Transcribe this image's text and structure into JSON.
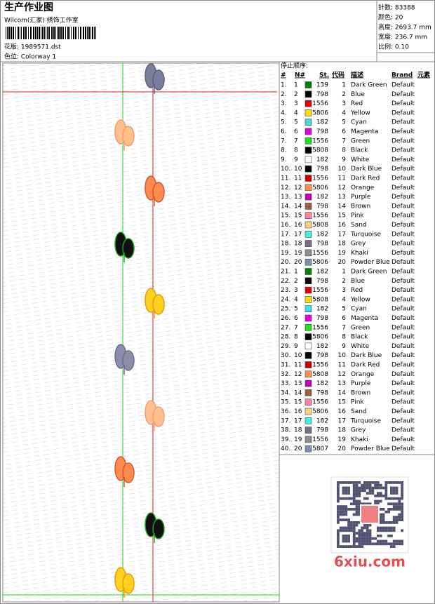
{
  "header": {
    "title": "生产作业图",
    "studio": "Wilcom(汇家) 绣饰工作室",
    "pattern": "花版: 1989571.dst",
    "colorway": "色位: Colorway 1"
  },
  "info": [
    "针数: 83388",
    "颜色: 20",
    "高度: 2693.7 mm",
    "宽度: 236.7 mm",
    "比例: 0.10"
  ],
  "table": {
    "title": "停止顺序:",
    "columns": [
      "#",
      "N#",
      "St.",
      "代码",
      "描述",
      "Brand",
      "元素"
    ],
    "rows": [
      [
        "1.",
        "1",
        "139",
        "1",
        "Dark Green",
        "Default"
      ],
      [
        "2.",
        "2",
        "798",
        "2",
        "Blue",
        "Default"
      ],
      [
        "3.",
        "3",
        "1556",
        "3",
        "Red",
        "Default"
      ],
      [
        "4.",
        "4",
        "5806",
        "4",
        "Yellow",
        "Default"
      ],
      [
        "5.",
        "5",
        "182",
        "5",
        "Cyan",
        "Default"
      ],
      [
        "6.",
        "6",
        "798",
        "6",
        "Magenta",
        "Default"
      ],
      [
        "7.",
        "7",
        "1556",
        "7",
        "Green",
        "Default"
      ],
      [
        "8.",
        "8",
        "5808",
        "8",
        "Black",
        "Default"
      ],
      [
        "9.",
        "9",
        "182",
        "9",
        "White",
        "Default"
      ],
      [
        "10.",
        "10",
        "798",
        "10",
        "Dark Blue",
        "Default"
      ],
      [
        "11.",
        "11",
        "1556",
        "11",
        "Dark Red",
        "Default"
      ],
      [
        "12.",
        "12",
        "5806",
        "12",
        "Orange",
        "Default"
      ],
      [
        "13.",
        "13",
        "182",
        "13",
        "Purple",
        "Default"
      ],
      [
        "14.",
        "14",
        "798",
        "14",
        "Brown",
        "Default"
      ],
      [
        "15.",
        "15",
        "1556",
        "15",
        "Pink",
        "Default"
      ],
      [
        "16.",
        "16",
        "5808",
        "16",
        "Sand",
        "Default"
      ],
      [
        "17.",
        "17",
        "182",
        "17",
        "Turquoise",
        "Default"
      ],
      [
        "18.",
        "18",
        "798",
        "18",
        "Grey",
        "Default"
      ],
      [
        "19.",
        "19",
        "1556",
        "19",
        "Khaki",
        "Default"
      ],
      [
        "20.",
        "20",
        "5806",
        "20",
        "Powder Blue",
        "Default"
      ],
      [
        "21.",
        "1",
        "182",
        "1",
        "Dark Green",
        "Default"
      ],
      [
        "22.",
        "2",
        "798",
        "2",
        "Blue",
        "Default"
      ],
      [
        "23.",
        "3",
        "1556",
        "3",
        "Red",
        "Default"
      ],
      [
        "24.",
        "4",
        "5808",
        "4",
        "Yellow",
        "Default"
      ],
      [
        "25.",
        "5",
        "182",
        "5",
        "Cyan",
        "Default"
      ],
      [
        "26.",
        "6",
        "798",
        "6",
        "Magenta",
        "Default"
      ],
      [
        "27.",
        "7",
        "1556",
        "7",
        "Green",
        "Default"
      ],
      [
        "28.",
        "8",
        "5806",
        "8",
        "Black",
        "Default"
      ],
      [
        "29.",
        "9",
        "182",
        "9",
        "White",
        "Default"
      ],
      [
        "30.",
        "10",
        "798",
        "10",
        "Dark Blue",
        "Default"
      ],
      [
        "31.",
        "11",
        "1556",
        "11",
        "Dark Red",
        "Default"
      ],
      [
        "32.",
        "12",
        "5808",
        "12",
        "Orange",
        "Default"
      ],
      [
        "33.",
        "13",
        "182",
        "13",
        "Purple",
        "Default"
      ],
      [
        "34.",
        "14",
        "798",
        "14",
        "Brown",
        "Default"
      ],
      [
        "35.",
        "15",
        "1556",
        "15",
        "Pink",
        "Default"
      ],
      [
        "36.",
        "16",
        "5806",
        "16",
        "Sand",
        "Default"
      ],
      [
        "37.",
        "17",
        "182",
        "17",
        "Turquoise",
        "Default"
      ],
      [
        "38.",
        "18",
        "798",
        "18",
        "Grey",
        "Default"
      ],
      [
        "39.",
        "19",
        "1556",
        "19",
        "Khaki",
        "Default"
      ],
      [
        "40.",
        "20",
        "5807",
        "20",
        "Powder Blue",
        "Default"
      ]
    ],
    "swatch_colors": [
      "#008000",
      "#000000",
      "#e00000",
      "#ffe000",
      "#40e0e0",
      "#e000e0",
      "#20e020",
      "#000000",
      "#ffffff",
      "#000000",
      "#d00000",
      "#ff9050",
      "#c000c0",
      "#a06040",
      "#ff80a0",
      "#ffd080",
      "#40f0e0",
      "#707088",
      "#909090",
      "#8090b0",
      "#008000",
      "#000000",
      "#e00000",
      "#ffe000",
      "#40e0e0",
      "#e000e0",
      "#20e020",
      "#000000",
      "#ffffff",
      "#000000",
      "#d00000",
      "#ff9050",
      "#c000c0",
      "#a06040",
      "#ff80a0",
      "#ffd080",
      "#40f0e0",
      "#707088",
      "#909090",
      "#8090b0"
    ]
  },
  "watermark": "6xiu.com"
}
